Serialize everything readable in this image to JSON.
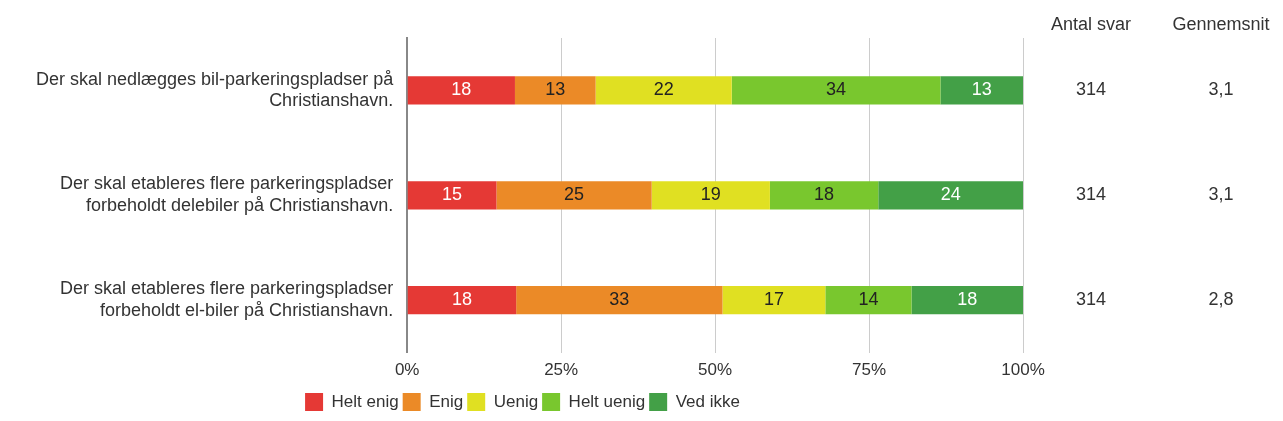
{
  "chart_data": {
    "type": "bar",
    "orientation": "horizontal",
    "stacked": true,
    "categories": [
      "Der skal nedlægges bil-parkeringspladser på Christianshavn.",
      "Der skal etableres flere parkeringspladser forbeholdt delebiler på Christianshavn.",
      "Der skal etableres flere parkeringspladser forbeholdt el-biler på Christianshavn."
    ],
    "series": [
      {
        "name": "Helt enig",
        "color": "#e53935",
        "values": [
          17.5,
          14.5,
          17.7
        ],
        "value_labels": [
          "18",
          "15",
          "18"
        ]
      },
      {
        "name": "Enig",
        "color": "#eb8a27",
        "values": [
          13.1,
          25.2,
          33.5
        ],
        "value_labels": [
          "13",
          "25",
          "33"
        ]
      },
      {
        "name": "Uenig",
        "color": "#e0e022",
        "values": [
          22.1,
          19.2,
          16.7
        ],
        "value_labels": [
          "22",
          "19",
          "17"
        ]
      },
      {
        "name": "Helt uenig",
        "color": "#79c72e",
        "values": [
          33.9,
          17.6,
          14.0
        ],
        "value_labels": [
          "34",
          "18",
          "14"
        ]
      },
      {
        "name": "Ved ikke",
        "color": "#43a047",
        "values": [
          13.4,
          23.5,
          18.1
        ],
        "value_labels": [
          "13",
          "24",
          "18"
        ]
      }
    ],
    "xlim": [
      0,
      100
    ],
    "xticks": [
      {
        "value": 0,
        "label": "0%"
      },
      {
        "value": 25,
        "label": "25%"
      },
      {
        "value": 50,
        "label": "50%"
      },
      {
        "value": 75,
        "label": "75%"
      },
      {
        "value": 100,
        "label": "100%"
      }
    ],
    "grid": "x",
    "legend": "bottom",
    "annotations": [
      "Antal svar",
      "Gennemsnit",
      "314",
      "3,1",
      "314",
      "3,1",
      "314",
      "2,8"
    ]
  }
}
